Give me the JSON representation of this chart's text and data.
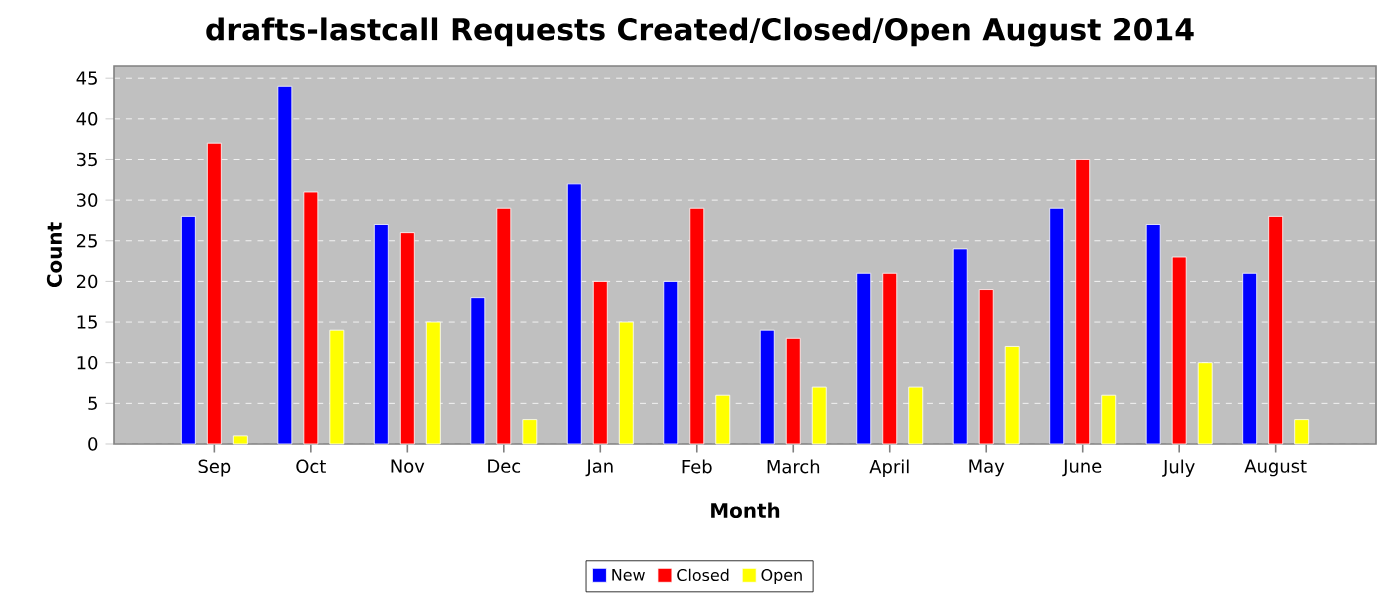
{
  "chart_data": {
    "type": "bar",
    "title": "drafts-lastcall Requests Created/Closed/Open August 2014",
    "xlabel": "Month",
    "ylabel": "Count",
    "categories": [
      "Sep",
      "Oct",
      "Nov",
      "Dec",
      "Jan",
      "Feb",
      "March",
      "April",
      "May",
      "June",
      "July",
      "August"
    ],
    "series": [
      {
        "name": "New",
        "color": "#0000ff",
        "values": [
          28,
          44,
          27,
          18,
          32,
          20,
          14,
          21,
          24,
          29,
          27,
          21
        ]
      },
      {
        "name": "Closed",
        "color": "#ff0000",
        "values": [
          37,
          31,
          26,
          29,
          20,
          29,
          13,
          21,
          19,
          35,
          23,
          28
        ]
      },
      {
        "name": "Open",
        "color": "#ffff00",
        "values": [
          1,
          14,
          15,
          3,
          15,
          6,
          7,
          7,
          12,
          6,
          10,
          3
        ]
      }
    ],
    "ylim": [
      0,
      46.5
    ],
    "yticks": [
      0,
      5,
      10,
      15,
      20,
      25,
      30,
      35,
      40,
      45
    ],
    "grid": "y",
    "legend": "bottom"
  }
}
